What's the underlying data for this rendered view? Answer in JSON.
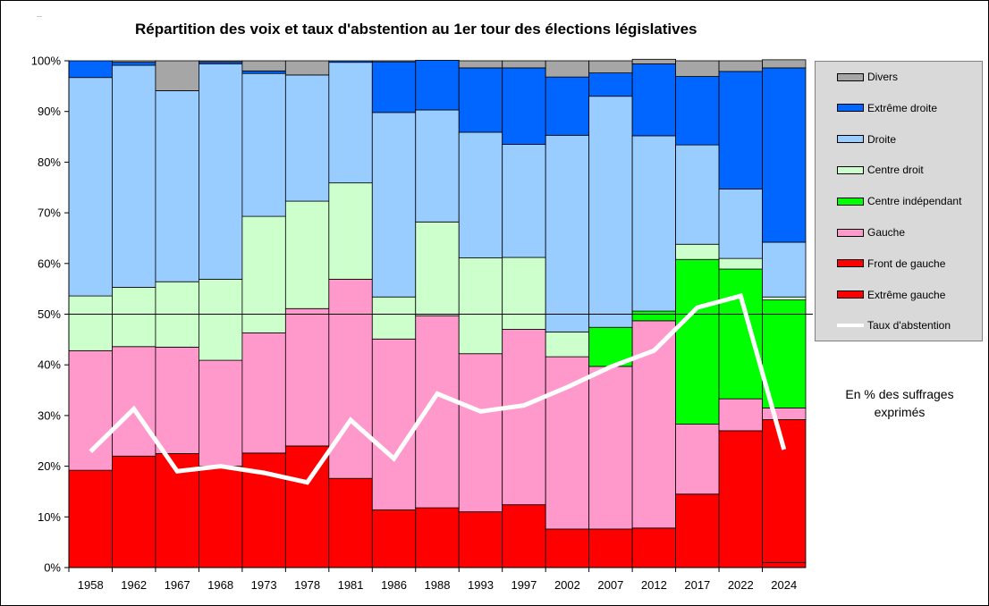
{
  "corner_mark": "--",
  "note": "En % des suffrages exprimés",
  "chart_data": {
    "type": "bar",
    "stacked": true,
    "title": "Répartition des voix et taux d'abstention au 1er tour des élections législatives",
    "xlabel": "",
    "ylabel": "",
    "ylim": [
      0,
      100
    ],
    "y_ticks": [
      "0%",
      "10%",
      "20%",
      "30%",
      "40%",
      "50%",
      "60%",
      "70%",
      "80%",
      "90%",
      "100%"
    ],
    "reference_line": 50,
    "legend_position": "right",
    "categories": [
      "1958",
      "1962",
      "1967",
      "1968",
      "1973",
      "1978",
      "1981",
      "1986",
      "1988",
      "1993",
      "1997",
      "2002",
      "2007",
      "2012",
      "2017",
      "2022",
      "2024"
    ],
    "series": [
      {
        "name": "Extrême gauche",
        "color": "#ff0000",
        "values": [
          0,
          0,
          0,
          0,
          0,
          0,
          0,
          0,
          0,
          0,
          0,
          0,
          0,
          0,
          0,
          0,
          1
        ]
      },
      {
        "name": "Front de gauche",
        "color": "#ff0000",
        "values": [
          19.2,
          22,
          22.5,
          20,
          22.6,
          24,
          17.6,
          11.4,
          11.8,
          11,
          12.4,
          7.6,
          7.6,
          7.8,
          14.5,
          27,
          28.2
        ]
      },
      {
        "name": "Gauche",
        "color": "#ff99cc",
        "values": [
          23.6,
          21.6,
          21,
          20.9,
          23.7,
          27.1,
          39.3,
          33.7,
          37.9,
          31.2,
          34.6,
          34,
          32.1,
          40.9,
          13.8,
          6.3,
          2.3
        ]
      },
      {
        "name": "Centre indépendant",
        "color": "#00ff00",
        "values": [
          0,
          0,
          0,
          0,
          0,
          0,
          0,
          0,
          0,
          0,
          0,
          0,
          7.7,
          1.9,
          32.5,
          25.6,
          21.3
        ]
      },
      {
        "name": "Centre droit",
        "color": "#ccffcc",
        "values": [
          10.8,
          11.7,
          12.9,
          16,
          23,
          21.2,
          19,
          8.3,
          18.5,
          18.9,
          14.2,
          4.9,
          0,
          0,
          3,
          2.1,
          0.6
        ]
      },
      {
        "name": "Droite",
        "color": "#99ccff",
        "values": [
          43.1,
          43.8,
          37.7,
          42.5,
          28.2,
          24.9,
          23.8,
          36.4,
          22.1,
          24.8,
          22.3,
          38.8,
          45.6,
          34.6,
          19.6,
          13.7,
          10.8
        ]
      },
      {
        "name": "Extrême droite",
        "color": "#0066ff",
        "values": [
          3.3,
          0.6,
          0,
          0.4,
          0.5,
          0,
          0.3,
          10,
          9.8,
          12.7,
          15.1,
          11.5,
          4.6,
          14.2,
          13.5,
          23.2,
          34.4
        ]
      },
      {
        "name": "Divers",
        "color": "#a6a6a6",
        "values": [
          0,
          0.3,
          5.9,
          0.2,
          2,
          2.8,
          0,
          0.2,
          0,
          1.4,
          1.4,
          3.2,
          2.4,
          0.9,
          3.1,
          2.1,
          1.6
        ]
      }
    ],
    "legend_order": [
      "Divers",
      "Extrême droite",
      "Droite",
      "Centre droit",
      "Centre indépendant",
      "Gauche",
      "Front de gauche",
      "Extrême gauche",
      "Taux d'abstention"
    ],
    "line_series": {
      "name": "Taux d'abstention",
      "color": "#ffffff",
      "values": [
        22.9,
        31.3,
        19,
        20,
        18.7,
        16.8,
        29.1,
        21.5,
        34.3,
        30.8,
        32,
        35.6,
        39.6,
        42.8,
        51.3,
        53.6,
        23.3
      ]
    }
  }
}
